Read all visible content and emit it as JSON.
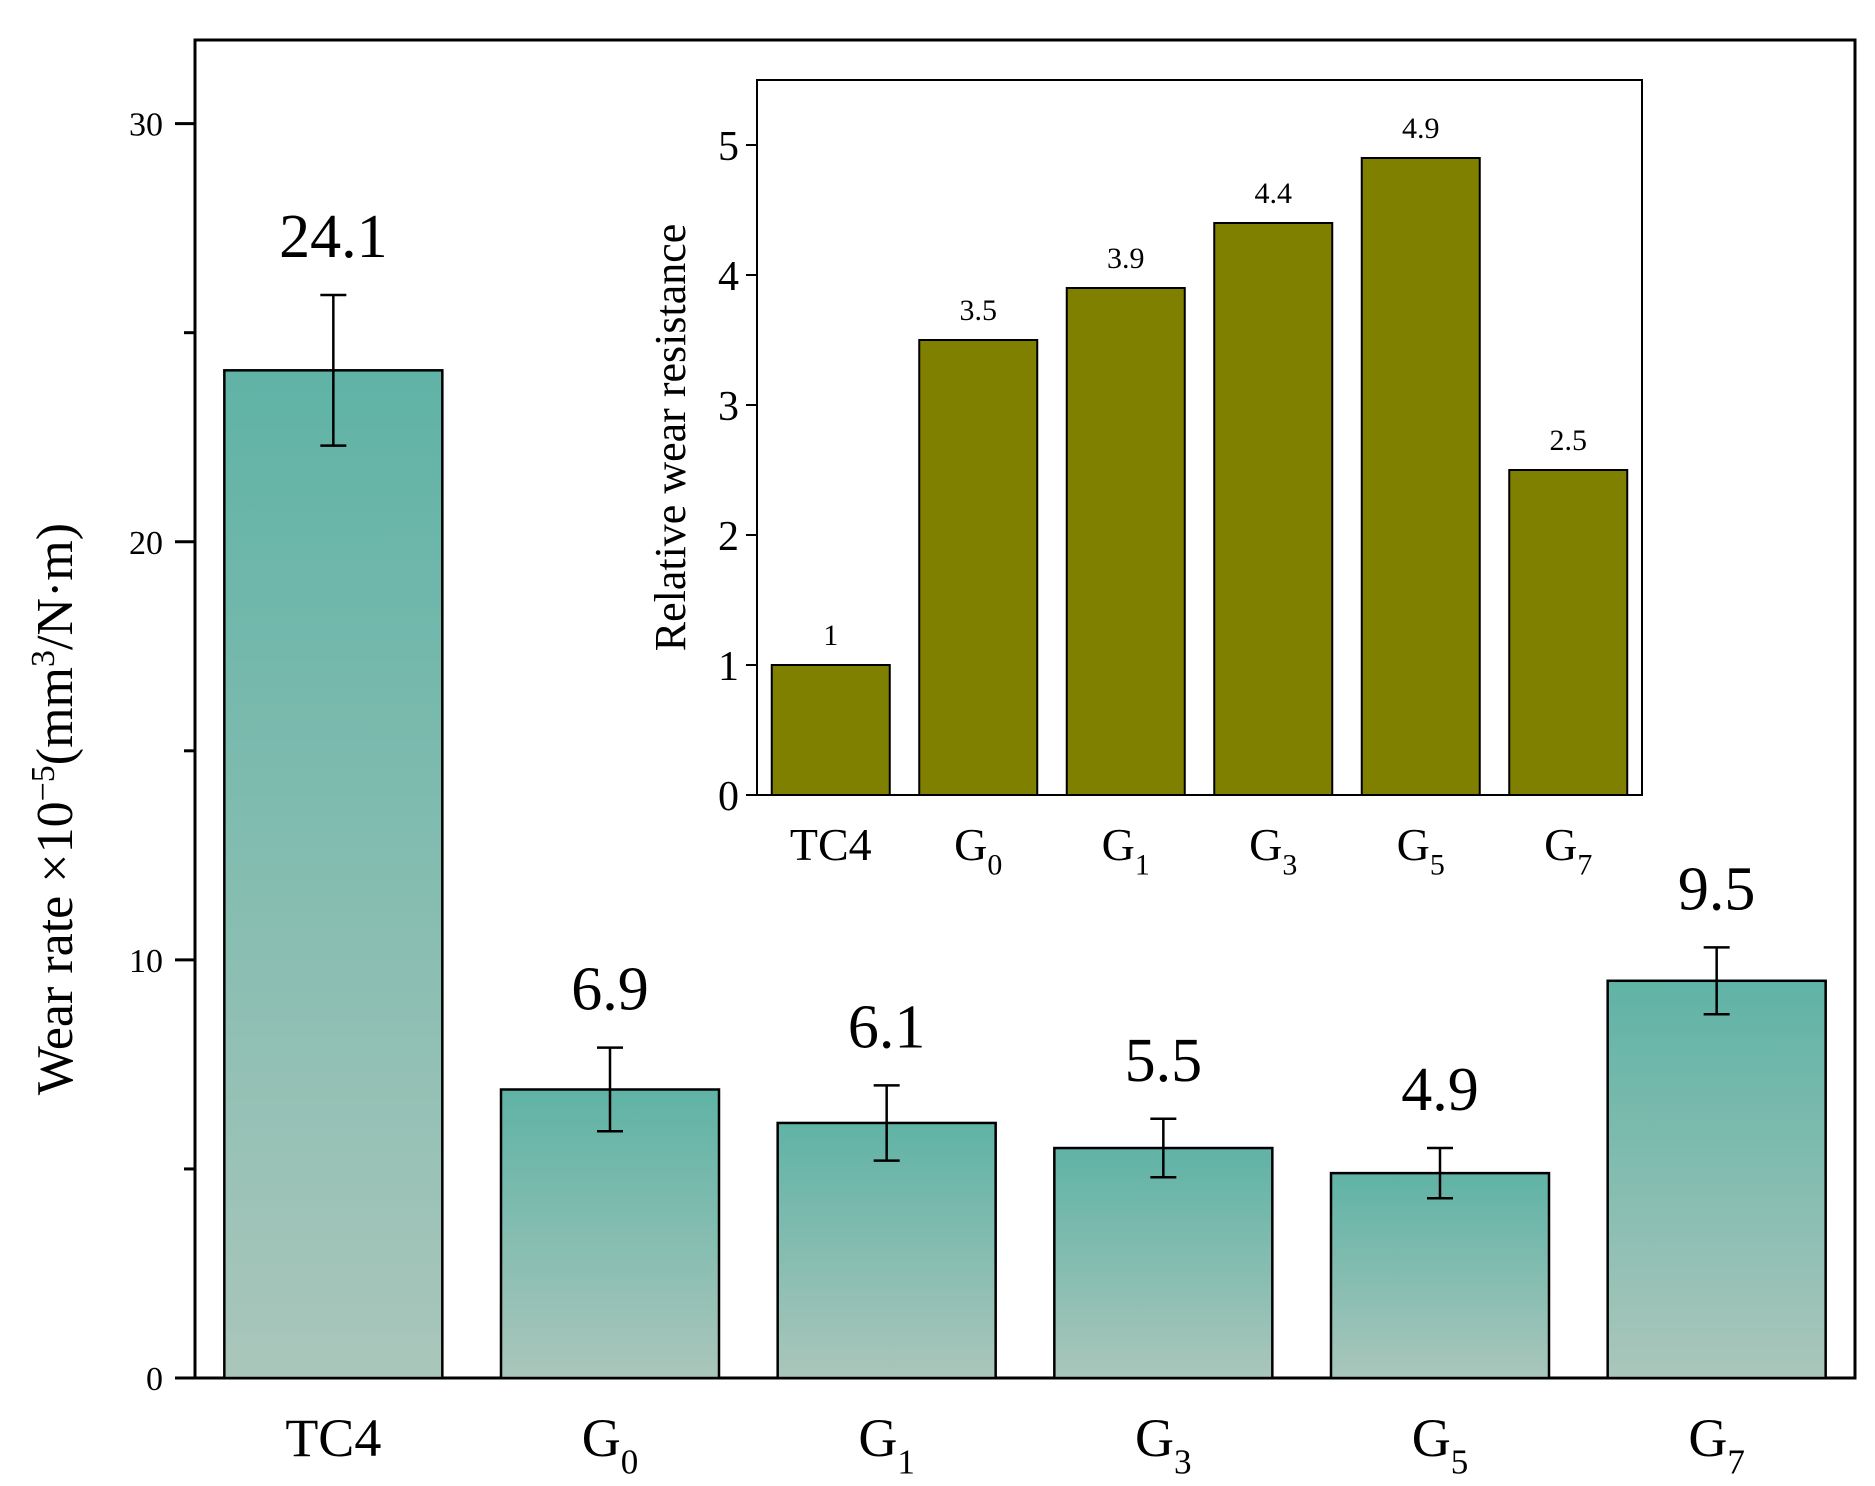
{
  "chart_data": [
    {
      "type": "bar",
      "categories": [
        {
          "base": "TC4",
          "sub": ""
        },
        {
          "base": "G",
          "sub": "0"
        },
        {
          "base": "G",
          "sub": "1"
        },
        {
          "base": "G",
          "sub": "3"
        },
        {
          "base": "G",
          "sub": "5"
        },
        {
          "base": "G",
          "sub": "7"
        }
      ],
      "values": [
        24.1,
        6.9,
        6.1,
        5.5,
        4.9,
        9.5
      ],
      "value_labels": [
        "24.1",
        "6.9",
        "6.1",
        "5.5",
        "4.9",
        "9.5"
      ],
      "error_bars": [
        1.8,
        1.0,
        0.9,
        0.7,
        0.6,
        0.8
      ],
      "ylabel": {
        "text": "Wear rate ×10",
        "exp": "−5",
        "unit_open": "(mm",
        "unit_exp": "3",
        "unit_close": "/N·m)"
      },
      "ylim": [
        0,
        32
      ],
      "yticks": [
        0,
        10,
        20,
        30
      ],
      "ytick_labels": [
        "0",
        "10",
        "20",
        "30"
      ],
      "bar_color_top": "#5fb3a6",
      "bar_color_bottom": "#aac6bb"
    },
    {
      "type": "bar",
      "inset": true,
      "categories": [
        {
          "base": "TC4",
          "sub": ""
        },
        {
          "base": "G",
          "sub": "0"
        },
        {
          "base": "G",
          "sub": "1"
        },
        {
          "base": "G",
          "sub": "3"
        },
        {
          "base": "G",
          "sub": "5"
        },
        {
          "base": "G",
          "sub": "7"
        }
      ],
      "values": [
        1,
        3.5,
        3.9,
        4.4,
        4.9,
        2.5
      ],
      "value_labels": [
        "1",
        "3.5",
        "3.9",
        "4.4",
        "4.9",
        "2.5"
      ],
      "ylabel": "Relative wear resistance",
      "ylim": [
        0,
        5.5
      ],
      "yticks": [
        0,
        1,
        2,
        3,
        4,
        5
      ],
      "ytick_labels": [
        "0",
        "1",
        "2",
        "3",
        "4",
        "5"
      ],
      "bar_color": "#808000"
    }
  ]
}
